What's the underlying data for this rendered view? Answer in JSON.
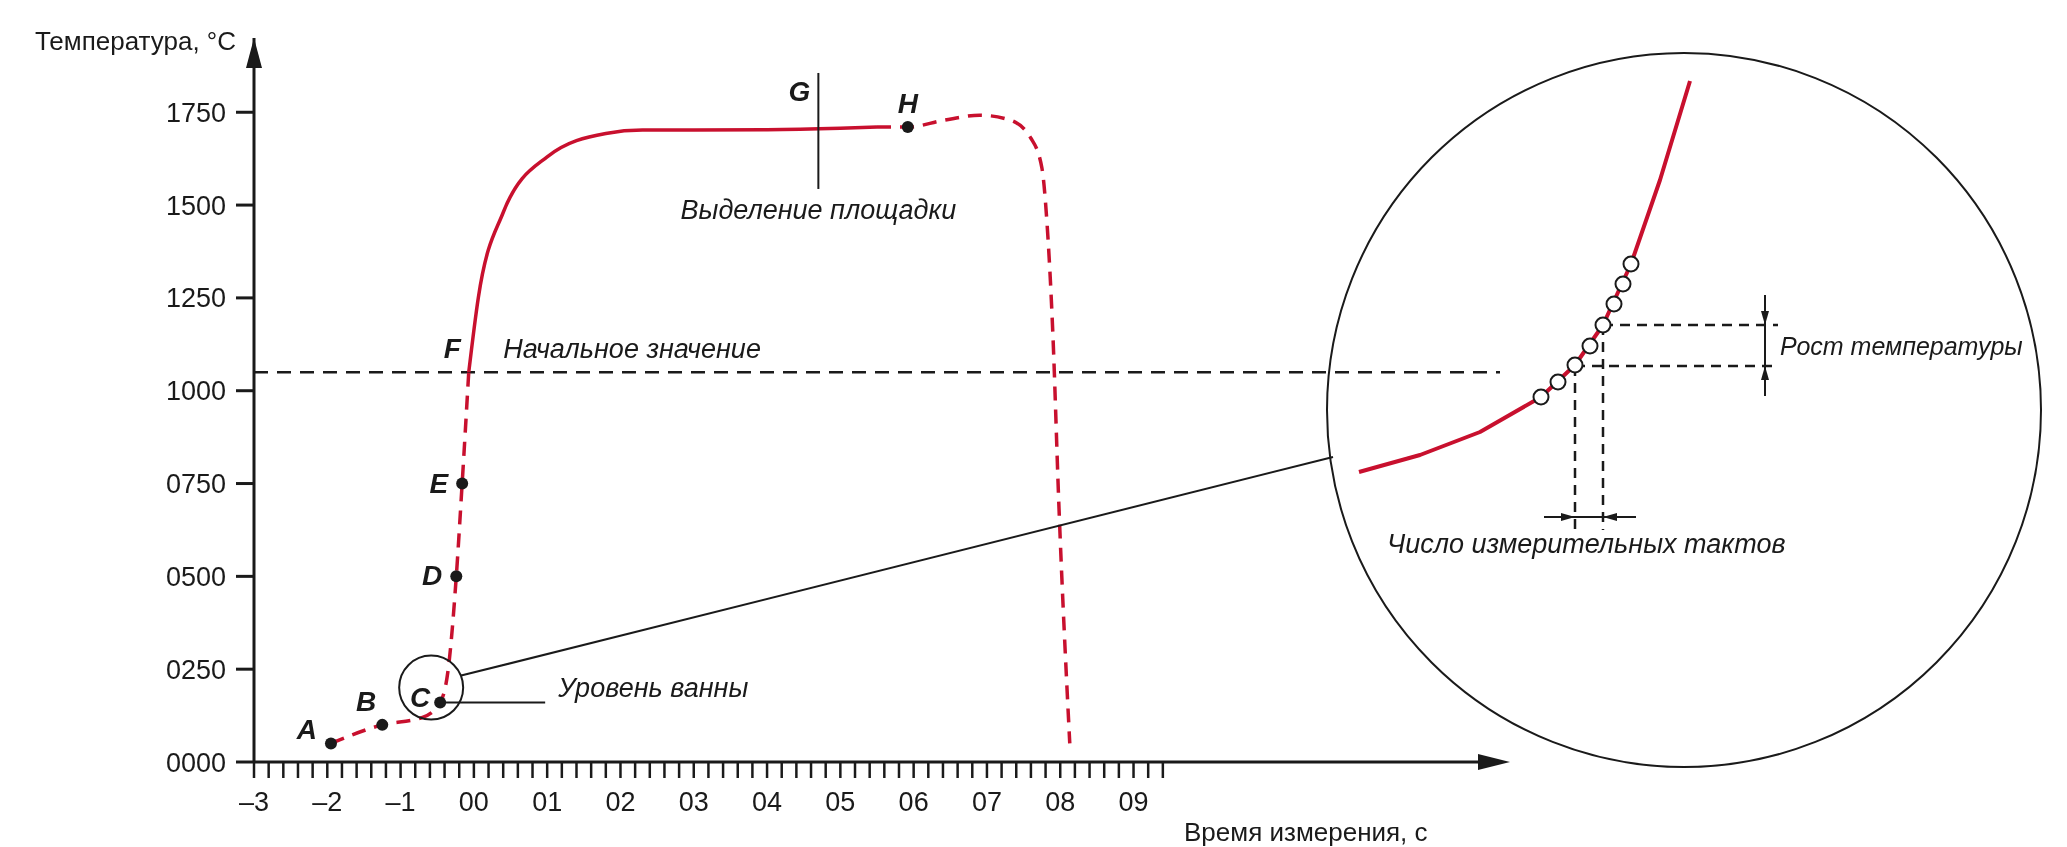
{
  "chart_data": [
    {
      "type": "line",
      "xlabel": "Время измерения, с",
      "ylabel": "Температура, °C",
      "xlim": [
        -3,
        14
      ],
      "ylim": [
        0,
        1950
      ],
      "xticks": [
        {
          "value": -3,
          "label": "–3"
        },
        {
          "value": -2.8,
          "label": null
        },
        {
          "value": -2.6,
          "label": null
        },
        {
          "value": -2.4,
          "label": null
        },
        {
          "value": -2.2,
          "label": null
        },
        {
          "value": -2,
          "label": "–2"
        },
        {
          "value": -1.8,
          "label": null
        },
        {
          "value": -1.6,
          "label": null
        },
        {
          "value": -1.4,
          "label": null
        },
        {
          "value": -1.2,
          "label": null
        },
        {
          "value": -1,
          "label": "–1"
        },
        {
          "value": -0.8,
          "label": null
        },
        {
          "value": -0.6,
          "label": null
        },
        {
          "value": -0.4,
          "label": null
        },
        {
          "value": -0.2,
          "label": null
        },
        {
          "value": 0,
          "label": "00"
        },
        {
          "value": 0.2,
          "label": null
        },
        {
          "value": 0.4,
          "label": null
        },
        {
          "value": 0.6,
          "label": null
        },
        {
          "value": 0.8,
          "label": null
        },
        {
          "value": 1,
          "label": "01"
        },
        {
          "value": 1.2,
          "label": null
        },
        {
          "value": 1.4,
          "label": null
        },
        {
          "value": 1.6,
          "label": null
        },
        {
          "value": 1.8,
          "label": null
        },
        {
          "value": 2,
          "label": "02"
        },
        {
          "value": 2.2,
          "label": null
        },
        {
          "value": 2.4,
          "label": null
        },
        {
          "value": 2.6,
          "label": null
        },
        {
          "value": 2.8,
          "label": null
        },
        {
          "value": 3,
          "label": "03"
        },
        {
          "value": 3.2,
          "label": null
        },
        {
          "value": 3.4,
          "label": null
        },
        {
          "value": 3.6,
          "label": null
        },
        {
          "value": 3.8,
          "label": null
        },
        {
          "value": 4,
          "label": "04"
        },
        {
          "value": 4.2,
          "label": null
        },
        {
          "value": 4.4,
          "label": null
        },
        {
          "value": 4.6,
          "label": null
        },
        {
          "value": 4.8,
          "label": null
        },
        {
          "value": 5,
          "label": "05"
        },
        {
          "value": 5.2,
          "label": null
        },
        {
          "value": 5.4,
          "label": null
        },
        {
          "value": 5.6,
          "label": null
        },
        {
          "value": 5.8,
          "label": null
        },
        {
          "value": 6,
          "label": "06"
        },
        {
          "value": 6.2,
          "label": null
        },
        {
          "value": 6.4,
          "label": null
        },
        {
          "value": 6.6,
          "label": null
        },
        {
          "value": 6.8,
          "label": null
        },
        {
          "value": 7,
          "label": "07"
        },
        {
          "value": 7.2,
          "label": null
        },
        {
          "value": 7.4,
          "label": null
        },
        {
          "value": 7.6,
          "label": null
        },
        {
          "value": 7.8,
          "label": null
        },
        {
          "value": 8,
          "label": "08"
        },
        {
          "value": 8.2,
          "label": null
        },
        {
          "value": 8.4,
          "label": null
        },
        {
          "value": 8.6,
          "label": null
        },
        {
          "value": 8.8,
          "label": null
        },
        {
          "value": 9,
          "label": "09"
        },
        {
          "value": 9.2,
          "label": null
        },
        {
          "value": 9.4,
          "label": null
        }
      ],
      "yticks": [
        {
          "value": 0,
          "label": "0000"
        },
        {
          "value": 250,
          "label": "0250"
        },
        {
          "value": 500,
          "label": "0500"
        },
        {
          "value": 750,
          "label": "0750"
        },
        1000,
        1250,
        1500,
        1750
      ],
      "marker": "none",
      "series": [
        {
          "type": "line",
          "line_style": "dashed",
          "color": "#c8102e",
          "x": [
            -1.95,
            -1.25,
            -0.7,
            -0.46,
            -0.35,
            -0.24,
            -0.16,
            -0.07
          ],
          "values": [
            50,
            100,
            120,
            160,
            250,
            500,
            750,
            1050
          ]
        },
        {
          "type": "line",
          "line_style": "solid",
          "color": "#c8102e",
          "x": [
            -0.07,
            0.06,
            0.4,
            1,
            1.8,
            2.3,
            3,
            4,
            5,
            5.5
          ],
          "values": [
            1050,
            1250,
            1480,
            1630,
            1693,
            1702,
            1702,
            1703,
            1707,
            1710
          ]
        },
        {
          "type": "line",
          "line_style": "dashed",
          "color": "#c8102e",
          "x": [
            5.5,
            5.92,
            6.4,
            6.9,
            7.3,
            7.6,
            7.75,
            7.82,
            7.9,
            7.98,
            8.13
          ],
          "values": [
            1710,
            1710,
            1728,
            1742,
            1730,
            1680,
            1600,
            1450,
            1150,
            700,
            50
          ]
        },
        {
          "type": "scatter",
          "marker": "circle",
          "color": "#1a1a1a",
          "x": [
            -1.95,
            -1.25,
            -0.46,
            -0.24,
            -0.16,
            5.92
          ],
          "values": [
            50,
            100,
            160,
            500,
            750,
            1710
          ]
        }
      ],
      "ref_lines": [
        {
          "axis": "y",
          "value": 1050,
          "line_style": "dashed",
          "color": "#1a1a1a",
          "label": "Начальное значение"
        }
      ],
      "annotations": [
        {
          "text": "A",
          "x": -1.95,
          "y": 50
        },
        {
          "text": "B",
          "x": -1.25,
          "y": 100
        },
        {
          "text": "C",
          "x": -0.46,
          "y": 160
        },
        {
          "text": "D",
          "x": -0.24,
          "y": 500
        },
        {
          "text": "E",
          "x": -0.16,
          "y": 750
        },
        {
          "text": "F",
          "x": -0.07,
          "y": 1050
        },
        {
          "text": "G",
          "x": 4.7,
          "y": 1705
        },
        {
          "text": "H",
          "x": 5.92,
          "y": 1710
        },
        "Выделение площадки",
        "Уровень ванны"
      ]
    },
    {
      "type": "other",
      "annotations": [
        "Рост температуры",
        "Число измерительных тактов"
      ]
    }
  ]
}
